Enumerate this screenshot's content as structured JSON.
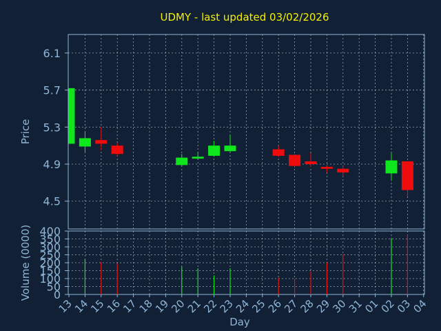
{
  "colors": {
    "background": "#112034",
    "title": "#f5f000",
    "axis_text": "#8fb6d8",
    "axis_line": "#8fb6d8",
    "grid": "#c8d2dc",
    "up": "#10e61e",
    "down": "#ee0c0c"
  },
  "chart_data": {
    "type": "candlestick",
    "title": "UDMY - last updated 03/02/2026",
    "ylabel": "Price",
    "xlabel": "Day",
    "volume_label": "Volume (0000)",
    "price_ylim": [
      4.2,
      6.3
    ],
    "price_ticks": [
      "4.5",
      "4.9",
      "5.3",
      "5.7",
      "6.1"
    ],
    "volume_ylim": [
      0,
      400
    ],
    "volume_ticks": [
      "0",
      "50",
      "100",
      "150",
      "200",
      "250",
      "300",
      "350",
      "400"
    ],
    "x_ticks": [
      "13",
      "14",
      "15",
      "16",
      "17",
      "18",
      "19",
      "20",
      "21",
      "22",
      "23",
      "24",
      "25",
      "26",
      "27",
      "28",
      "29",
      "30",
      "31",
      "01",
      "02",
      "03",
      "04"
    ],
    "grid": true,
    "candles": [
      {
        "x": "13",
        "open": 5.12,
        "close": 5.72,
        "high": 5.72,
        "low": 5.12,
        "volume": 0
      },
      {
        "x": "14",
        "open": 5.09,
        "close": 5.18,
        "high": 5.25,
        "low": 5.03,
        "volume": 225
      },
      {
        "x": "15",
        "open": 5.16,
        "close": 5.12,
        "high": 5.3,
        "low": 5.05,
        "volume": 205
      },
      {
        "x": "16",
        "open": 5.1,
        "close": 5.01,
        "high": 5.13,
        "low": 4.99,
        "volume": 195
      },
      {
        "x": "20",
        "open": 4.89,
        "close": 4.97,
        "high": 5.01,
        "low": 4.88,
        "volume": 175
      },
      {
        "x": "21",
        "open": 4.96,
        "close": 4.98,
        "high": 5.03,
        "low": 4.95,
        "volume": 165
      },
      {
        "x": "22",
        "open": 4.99,
        "close": 5.1,
        "high": 5.15,
        "low": 4.98,
        "volume": 120
      },
      {
        "x": "23",
        "open": 5.04,
        "close": 5.1,
        "high": 5.22,
        "low": 5.03,
        "volume": 165
      },
      {
        "x": "26",
        "open": 5.06,
        "close": 4.99,
        "high": 5.1,
        "low": 4.98,
        "volume": 105
      },
      {
        "x": "27",
        "open": 5.0,
        "close": 4.88,
        "high": 5.01,
        "low": 4.86,
        "volume": 100
      },
      {
        "x": "28",
        "open": 4.93,
        "close": 4.9,
        "high": 5.02,
        "low": 4.87,
        "volume": 145
      },
      {
        "x": "29",
        "open": 4.87,
        "close": 4.85,
        "high": 4.88,
        "low": 4.81,
        "volume": 200
      },
      {
        "x": "30",
        "open": 4.85,
        "close": 4.81,
        "high": 4.88,
        "low": 4.77,
        "volume": 255
      },
      {
        "x": "02",
        "open": 4.8,
        "close": 4.94,
        "high": 5.02,
        "low": 4.72,
        "volume": 355
      },
      {
        "x": "03",
        "open": 4.93,
        "close": 4.62,
        "high": 4.93,
        "low": 4.55,
        "volume": 375
      }
    ]
  }
}
